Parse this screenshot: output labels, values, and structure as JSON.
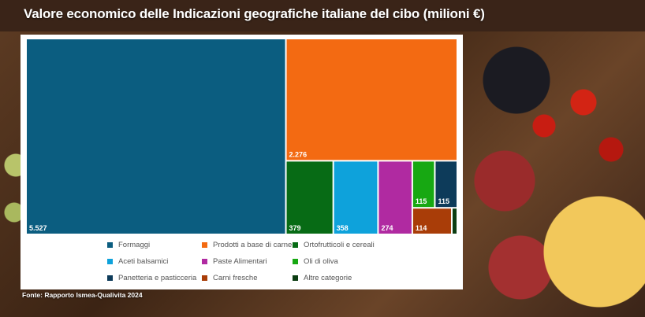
{
  "title": "Valore economico delle Indicazioni geografiche italiane del cibo (milioni €)",
  "source": "Fonte: Rapporto Ismea-Qualivita 2024",
  "chart_data": {
    "type": "treemap",
    "title": "Valore economico delle Indicazioni geografiche italiane del cibo (milioni €)",
    "unit": "milioni €",
    "decimal_separator": "dot_thousands",
    "items": [
      {
        "name": "Formaggi",
        "value": 5527,
        "label": "5.527",
        "color": "#0b5d80"
      },
      {
        "name": "Prodotti a base di carne",
        "value": 2276,
        "label": "2.276",
        "color": "#f36a12"
      },
      {
        "name": "Ortofrutticoli e cereali",
        "value": 379,
        "label": "379",
        "color": "#076b15"
      },
      {
        "name": "Aceti balsamici",
        "value": 358,
        "label": "358",
        "color": "#0ea2db"
      },
      {
        "name": "Paste Alimentari",
        "value": 274,
        "label": "274",
        "color": "#b02aa1"
      },
      {
        "name": "Oli di oliva",
        "value": 115,
        "label": "115",
        "color": "#17a812"
      },
      {
        "name": "Panetteria e pasticceria",
        "value": 115,
        "label": "115",
        "color": "#0d3b5a"
      },
      {
        "name": "Carni fresche",
        "value": 114,
        "label": "114",
        "color": "#a93d08"
      },
      {
        "name": "Altre categorie",
        "value": 16,
        "label": "",
        "color": "#0b3d12"
      }
    ],
    "legend_order": [
      "Formaggi",
      "Prodotti a base di carne",
      "Ortofrutticoli e cereali",
      "Aceti balsamici",
      "Paste Alimentari",
      "Oli di oliva",
      "Panetteria e pasticceria",
      "Carni fresche",
      "Altre categorie"
    ],
    "legend_position": "bottom"
  }
}
